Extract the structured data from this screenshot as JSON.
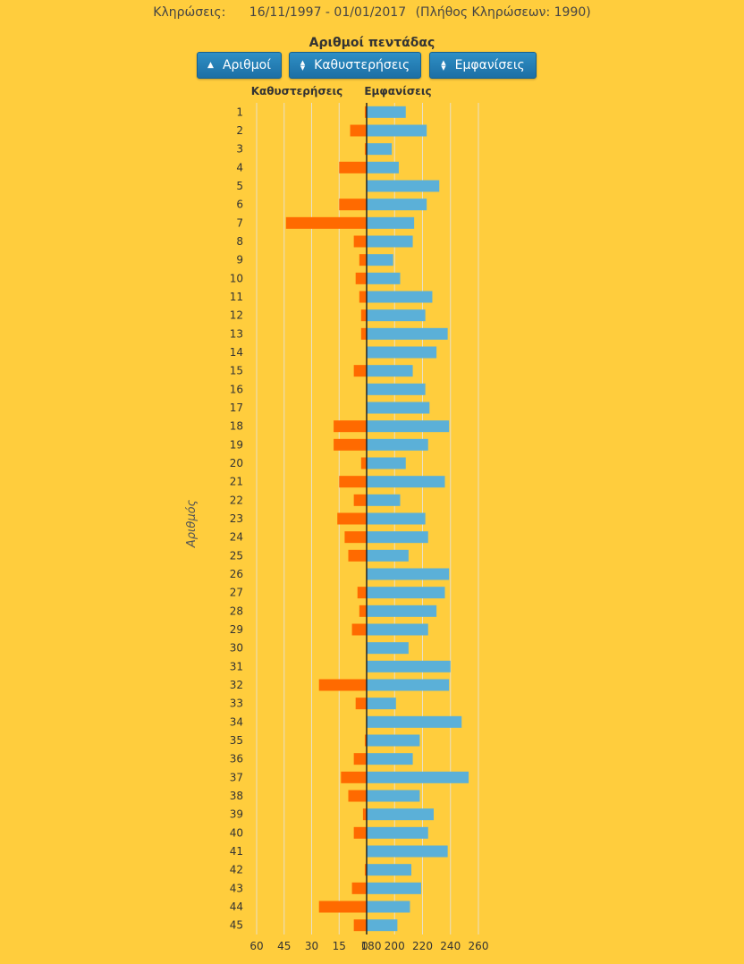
{
  "header": {
    "label": "Κληρώσεις:",
    "range": "16/11/1997 - 01/01/2017",
    "count": "(Πλήθος Κληρώσεων: 1990)"
  },
  "title": "Αριθμοί πεντάδας",
  "buttons": {
    "numbers": "Αριθμοί",
    "delays": "Καθυστερήσεις",
    "appearances": "Εμφανίσεις"
  },
  "colors": {
    "background": "#FFCD3D",
    "delays": "#FF6A00",
    "appearances": "#5BB0D8",
    "button": "#1F78B4"
  },
  "chart_data": {
    "type": "bar",
    "orientation": "horizontal-back-to-back",
    "title": "Αριθμοί πεντάδας",
    "ylabel": "Αριθμός",
    "categories": [
      "1",
      "2",
      "3",
      "4",
      "5",
      "6",
      "7",
      "8",
      "9",
      "10",
      "11",
      "12",
      "13",
      "14",
      "15",
      "16",
      "17",
      "18",
      "19",
      "20",
      "21",
      "22",
      "23",
      "24",
      "25",
      "26",
      "27",
      "28",
      "29",
      "30",
      "31",
      "32",
      "33",
      "34",
      "35",
      "36",
      "37",
      "38",
      "39",
      "40",
      "41",
      "42",
      "43",
      "44",
      "45"
    ],
    "left": {
      "name": "Καθυστερήσεις",
      "axis_ticks": [
        "60",
        "45",
        "30",
        "15",
        "0"
      ],
      "xlim": [
        0,
        60
      ],
      "values": [
        1,
        9,
        1,
        15,
        0,
        15,
        44,
        7,
        4,
        6,
        4,
        3,
        3,
        0,
        7,
        0,
        0,
        18,
        18,
        3,
        15,
        7,
        16,
        12,
        10,
        0,
        5,
        4,
        8,
        0,
        0,
        26,
        6,
        0,
        1,
        7,
        14,
        10,
        2,
        7,
        0,
        1,
        8,
        26,
        7
      ]
    },
    "right": {
      "name": "Εμφανίσεις",
      "axis_ticks": [
        "180",
        "200",
        "220",
        "240",
        "260"
      ],
      "xlim": [
        180,
        260
      ],
      "values": [
        208,
        223,
        198,
        203,
        232,
        223,
        214,
        213,
        199,
        204,
        227,
        222,
        238,
        230,
        213,
        222,
        225,
        239,
        224,
        208,
        236,
        204,
        222,
        224,
        210,
        239,
        236,
        230,
        224,
        210,
        240,
        239,
        201,
        248,
        218,
        213,
        253,
        218,
        228,
        224,
        238,
        212,
        219,
        211,
        202
      ]
    },
    "grid": true,
    "legend": "none"
  }
}
